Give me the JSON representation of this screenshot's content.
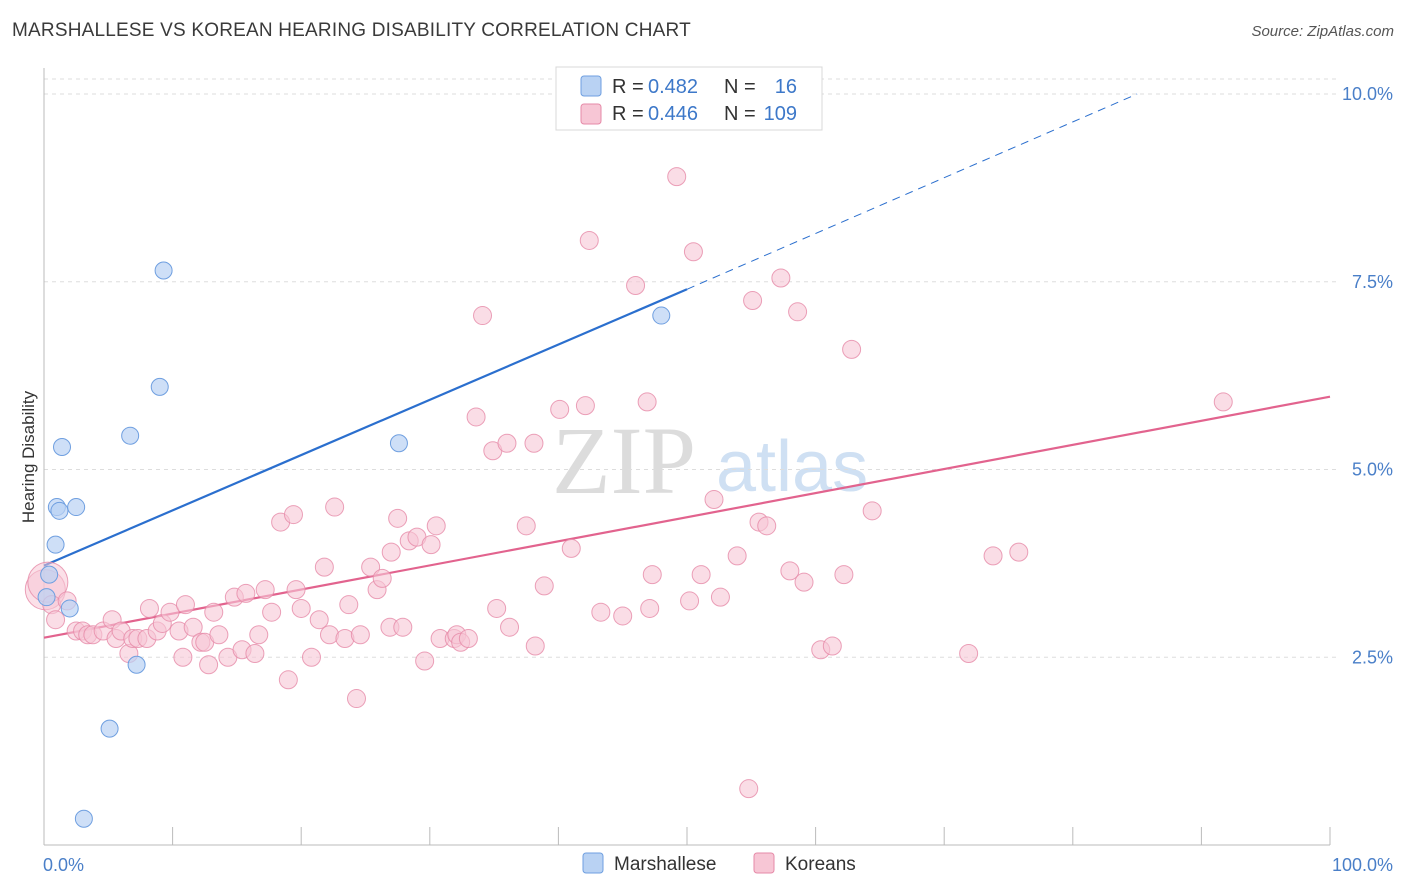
{
  "title": "MARSHALLESE VS KOREAN HEARING DISABILITY CORRELATION CHART",
  "source": "Source: ZipAtlas.com",
  "watermark": {
    "zip": "ZIP",
    "atlas": "atlas"
  },
  "colors": {
    "marshallese": "#6f9fe0",
    "marshallese_fill": "#b9d2f3",
    "marshallese_line": "#2b6fce",
    "koreans": "#e68aa8",
    "koreans_fill": "#f7c6d5",
    "koreans_line": "#e2638e",
    "tick": "#4a7fc8",
    "grid": "#dddddd"
  },
  "legend": {
    "r_label": "R =",
    "n_label": "N =",
    "rows": [
      {
        "series": "Marshallese",
        "r": "0.482",
        "n": "16"
      },
      {
        "series": "Koreans",
        "r": "0.446",
        "n": "109"
      }
    ]
  },
  "chart_data": {
    "type": "scatter",
    "title": "MARSHALLESE VS KOREAN HEARING DISABILITY CORRELATION CHART",
    "xlabel": "",
    "ylabel": "Hearing Disability",
    "xlim": [
      0,
      100
    ],
    "ylim": [
      0,
      10.2
    ],
    "x_tick_labels": [
      {
        "value": 0,
        "label": "0.0%"
      },
      {
        "value": 100,
        "label": "100.0%"
      }
    ],
    "y_tick_labels": [
      {
        "value": 2.5,
        "label": "2.5%"
      },
      {
        "value": 5.0,
        "label": "5.0%"
      },
      {
        "value": 7.5,
        "label": "7.5%"
      },
      {
        "value": 10.0,
        "label": "10.0%"
      }
    ],
    "grid": true,
    "legend_position": "top-center",
    "series": [
      {
        "name": "Marshallese",
        "points": [
          [
            0.2,
            3.3
          ],
          [
            0.4,
            3.6
          ],
          [
            0.9,
            4.0
          ],
          [
            1.0,
            4.5
          ],
          [
            1.2,
            4.45
          ],
          [
            1.4,
            5.3
          ],
          [
            2.0,
            3.15
          ],
          [
            2.5,
            4.5
          ],
          [
            3.1,
            0.35
          ],
          [
            5.1,
            1.55
          ],
          [
            7.2,
            2.4
          ],
          [
            6.7,
            5.45
          ],
          [
            9.0,
            6.1
          ],
          [
            9.3,
            7.65
          ],
          [
            27.6,
            5.35
          ],
          [
            48.0,
            7.05
          ]
        ],
        "trend": {
          "x0": 0,
          "y0": 3.72,
          "x1": 50,
          "y1": 7.4,
          "dashed_to": {
            "x": 85,
            "y": 10.0
          }
        }
      },
      {
        "name": "Koreans",
        "points": [
          [
            0.1,
            3.4
          ],
          [
            0.3,
            3.5
          ],
          [
            0.6,
            3.2
          ],
          [
            0.9,
            3.0
          ],
          [
            1.8,
            3.25
          ],
          [
            2.5,
            2.85
          ],
          [
            3.0,
            2.85
          ],
          [
            3.4,
            2.8
          ],
          [
            3.8,
            2.8
          ],
          [
            4.6,
            2.85
          ],
          [
            5.3,
            3.0
          ],
          [
            5.6,
            2.75
          ],
          [
            6.0,
            2.85
          ],
          [
            6.6,
            2.55
          ],
          [
            6.9,
            2.75
          ],
          [
            7.3,
            2.75
          ],
          [
            8.0,
            2.75
          ],
          [
            8.2,
            3.15
          ],
          [
            8.8,
            2.85
          ],
          [
            9.2,
            2.95
          ],
          [
            9.8,
            3.1
          ],
          [
            10.5,
            2.85
          ],
          [
            10.8,
            2.5
          ],
          [
            11.0,
            3.2
          ],
          [
            11.6,
            2.9
          ],
          [
            12.2,
            2.7
          ],
          [
            12.5,
            2.7
          ],
          [
            12.8,
            2.4
          ],
          [
            13.2,
            3.1
          ],
          [
            13.6,
            2.8
          ],
          [
            14.3,
            2.5
          ],
          [
            14.8,
            3.3
          ],
          [
            15.4,
            2.6
          ],
          [
            15.7,
            3.35
          ],
          [
            16.4,
            2.55
          ],
          [
            16.7,
            2.8
          ],
          [
            17.2,
            3.4
          ],
          [
            17.7,
            3.1
          ],
          [
            18.4,
            4.3
          ],
          [
            19.0,
            2.2
          ],
          [
            19.4,
            4.4
          ],
          [
            19.6,
            3.4
          ],
          [
            20.0,
            3.15
          ],
          [
            20.8,
            2.5
          ],
          [
            21.4,
            3.0
          ],
          [
            21.8,
            3.7
          ],
          [
            22.2,
            2.8
          ],
          [
            22.6,
            4.5
          ],
          [
            23.4,
            2.75
          ],
          [
            23.7,
            3.2
          ],
          [
            24.3,
            1.95
          ],
          [
            24.6,
            2.8
          ],
          [
            25.4,
            3.7
          ],
          [
            25.9,
            3.4
          ],
          [
            26.3,
            3.55
          ],
          [
            26.9,
            2.9
          ],
          [
            27.0,
            3.9
          ],
          [
            27.5,
            4.35
          ],
          [
            27.9,
            2.9
          ],
          [
            28.4,
            4.05
          ],
          [
            29.0,
            4.1
          ],
          [
            29.6,
            2.45
          ],
          [
            30.1,
            4.0
          ],
          [
            30.5,
            4.25
          ],
          [
            30.8,
            2.75
          ],
          [
            31.9,
            2.75
          ],
          [
            32.1,
            2.8
          ],
          [
            32.4,
            2.7
          ],
          [
            33.0,
            2.75
          ],
          [
            33.6,
            5.7
          ],
          [
            34.1,
            7.05
          ],
          [
            34.9,
            5.25
          ],
          [
            35.2,
            3.15
          ],
          [
            36.2,
            2.9
          ],
          [
            36.0,
            5.35
          ],
          [
            37.5,
            4.25
          ],
          [
            38.1,
            5.35
          ],
          [
            38.2,
            2.65
          ],
          [
            38.9,
            3.45
          ],
          [
            40.1,
            5.8
          ],
          [
            41.0,
            3.95
          ],
          [
            42.1,
            5.85
          ],
          [
            42.4,
            8.05
          ],
          [
            43.3,
            3.1
          ],
          [
            45.0,
            3.05
          ],
          [
            46.0,
            7.45
          ],
          [
            46.9,
            5.9
          ],
          [
            47.1,
            3.15
          ],
          [
            47.3,
            3.6
          ],
          [
            49.2,
            8.9
          ],
          [
            50.2,
            3.25
          ],
          [
            50.5,
            7.9
          ],
          [
            51.1,
            3.6
          ],
          [
            52.1,
            4.6
          ],
          [
            52.6,
            3.3
          ],
          [
            53.9,
            3.85
          ],
          [
            54.8,
            0.75
          ],
          [
            55.1,
            7.25
          ],
          [
            55.6,
            4.3
          ],
          [
            56.2,
            4.25
          ],
          [
            57.3,
            7.55
          ],
          [
            58.0,
            3.65
          ],
          [
            58.6,
            7.1
          ],
          [
            59.1,
            3.5
          ],
          [
            60.4,
            2.6
          ],
          [
            61.3,
            2.65
          ],
          [
            62.2,
            3.6
          ],
          [
            62.8,
            6.6
          ],
          [
            64.4,
            4.45
          ],
          [
            71.9,
            2.55
          ],
          [
            73.8,
            3.85
          ],
          [
            75.8,
            3.9
          ],
          [
            91.7,
            5.9
          ]
        ],
        "trend": {
          "x0": 0,
          "y0": 2.76,
          "x1": 100,
          "y1": 5.97
        }
      }
    ]
  }
}
